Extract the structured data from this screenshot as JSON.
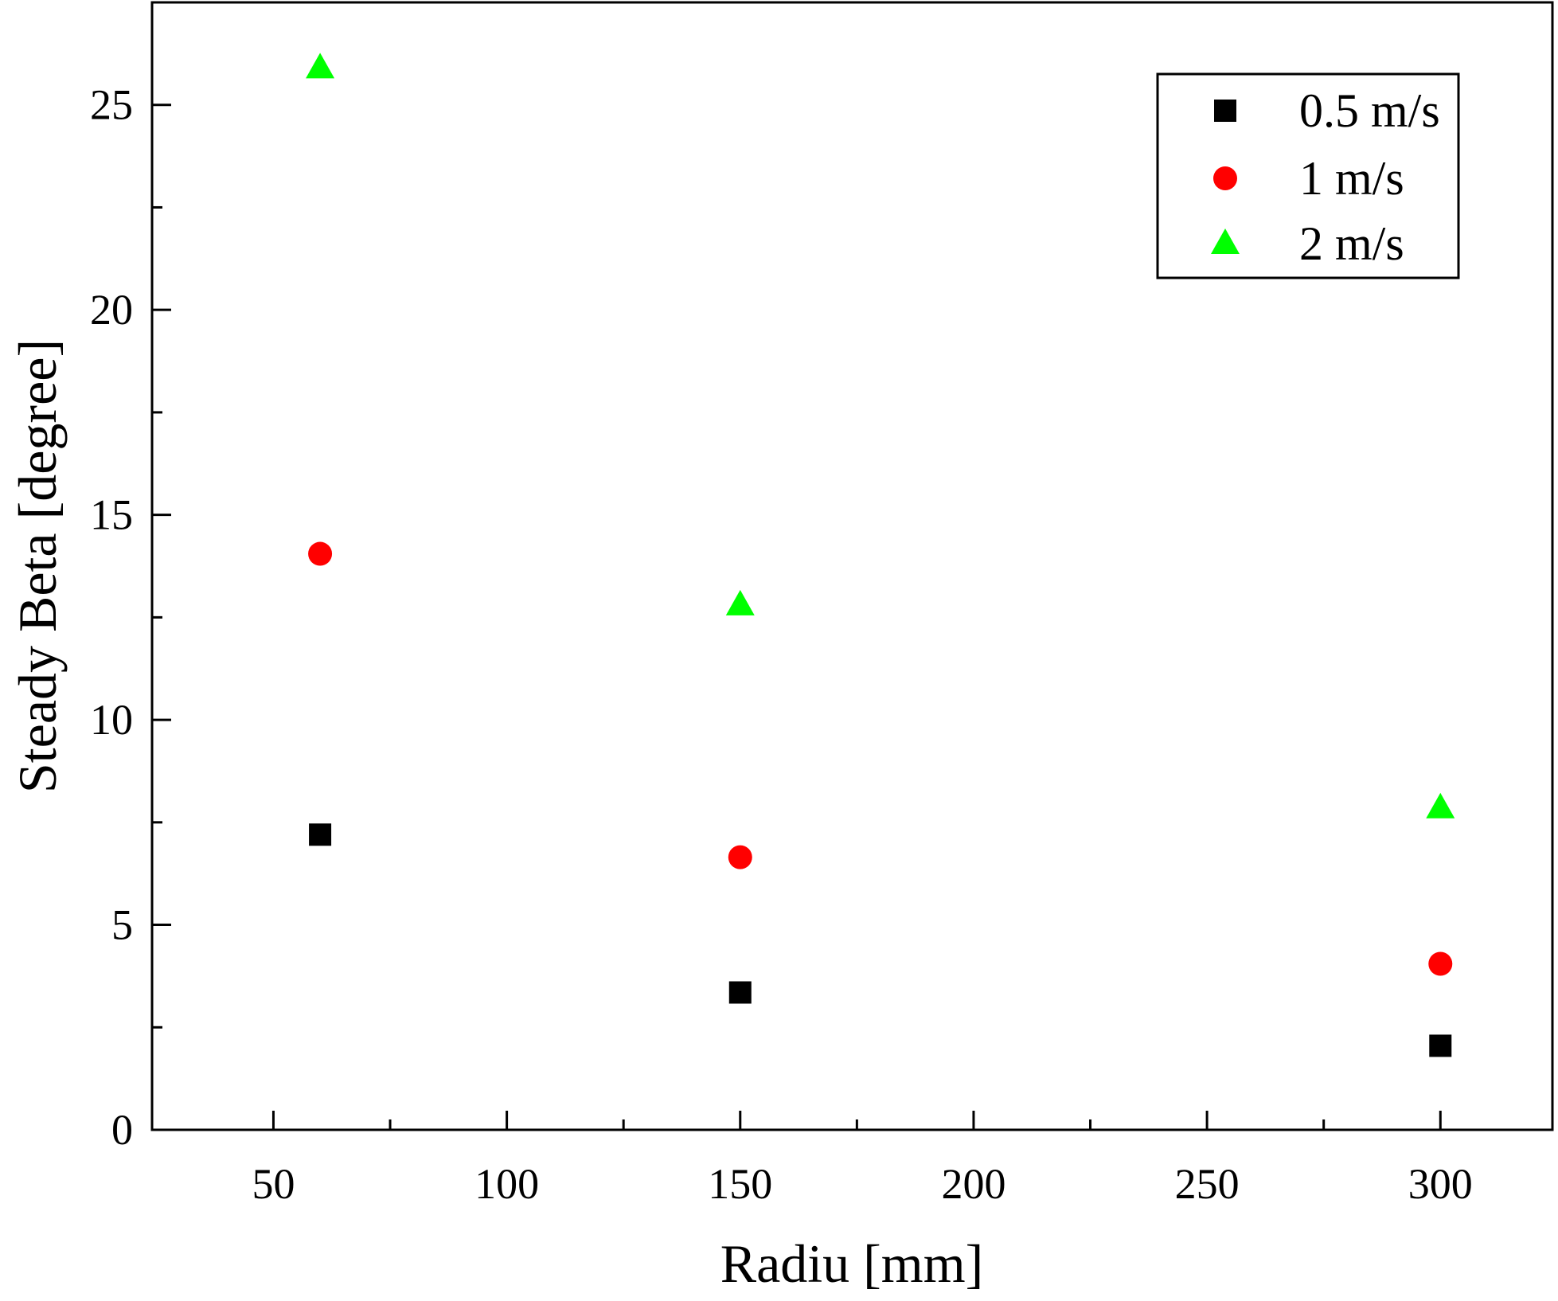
{
  "chart_data": {
    "type": "scatter",
    "title": "",
    "xlabel": "Radiu [mm]",
    "ylabel": "Steady Beta [degree]",
    "xlim": [
      24,
      324
    ],
    "ylim": [
      0,
      27.5
    ],
    "x_ticks": [
      50,
      100,
      150,
      200,
      250,
      300
    ],
    "y_ticks": [
      0,
      5,
      10,
      15,
      20,
      25
    ],
    "x_tick_labels": [
      "50",
      "100",
      "150",
      "200",
      "250",
      "300"
    ],
    "y_tick_labels": [
      "0",
      "5",
      "10",
      "15",
      "20",
      "25"
    ],
    "grid": false,
    "legend_position": "top-right",
    "series": [
      {
        "name": "0.5 m/s",
        "marker": "square",
        "color": "#000000",
        "x": [
          60,
          150,
          300
        ],
        "y": [
          7.2,
          3.35,
          2.05
        ]
      },
      {
        "name": "1 m/s",
        "marker": "circle",
        "color": "#ff0000",
        "x": [
          60,
          150,
          300
        ],
        "y": [
          14.05,
          6.65,
          4.05
        ]
      },
      {
        "name": "2 m/s",
        "marker": "triangle",
        "color": "#00ff00",
        "x": [
          60,
          150,
          300
        ],
        "y": [
          25.9,
          12.8,
          7.85
        ]
      }
    ]
  }
}
